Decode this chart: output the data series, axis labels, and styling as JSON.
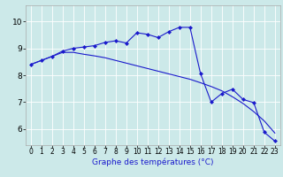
{
  "xlabel": "Graphe des températures (°C)",
  "bg_color": "#cce9e9",
  "grid_color": "#ffffff",
  "line_color": "#1a1acc",
  "x_ticks": [
    0,
    1,
    2,
    3,
    4,
    5,
    6,
    7,
    8,
    9,
    10,
    11,
    12,
    13,
    14,
    15,
    16,
    17,
    18,
    19,
    20,
    21,
    22,
    23
  ],
  "y_ticks": [
    6,
    7,
    8,
    9,
    10
  ],
  "ylim": [
    5.4,
    10.6
  ],
  "xlim": [
    -0.5,
    23.5
  ],
  "line1_x": [
    0,
    1,
    2,
    3,
    4,
    5,
    6,
    7,
    8,
    9,
    10,
    11,
    12,
    13,
    14,
    15,
    16,
    17,
    18,
    19,
    20,
    21,
    22,
    23
  ],
  "line1_y": [
    8.4,
    8.55,
    8.7,
    8.85,
    8.85,
    8.78,
    8.72,
    8.65,
    8.55,
    8.45,
    8.35,
    8.25,
    8.15,
    8.05,
    7.95,
    7.85,
    7.72,
    7.58,
    7.42,
    7.2,
    6.95,
    6.65,
    6.3,
    5.85
  ],
  "line2_x": [
    0,
    1,
    2,
    3,
    4,
    5,
    6,
    7,
    8,
    9,
    10,
    11,
    12,
    13,
    14,
    15,
    16,
    17,
    18,
    19,
    20,
    21,
    22,
    23
  ],
  "line2_y": [
    8.4,
    8.55,
    8.7,
    8.9,
    9.0,
    9.05,
    9.1,
    9.22,
    9.28,
    9.2,
    9.58,
    9.52,
    9.4,
    9.62,
    9.78,
    9.78,
    8.05,
    7.0,
    7.32,
    7.48,
    7.1,
    6.98,
    5.88,
    5.55
  ],
  "xlabel_fontsize": 6.5,
  "tick_fontsize_x": 5.5,
  "tick_fontsize_y": 6.5
}
